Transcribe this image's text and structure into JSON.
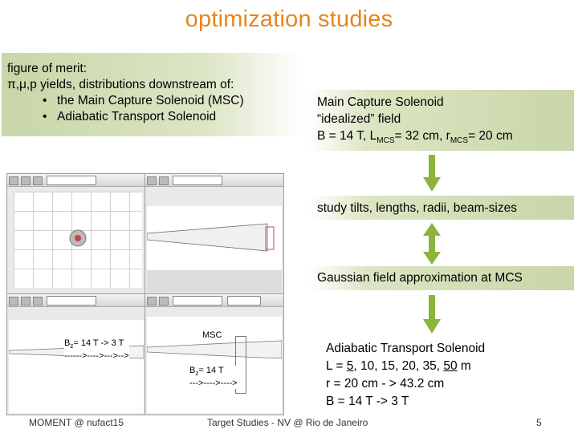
{
  "slide": {
    "title": "optimization studies",
    "merit": {
      "heading": "figure of merit:",
      "line": "π,μ,p yields, distributions downstream of:",
      "items": [
        "the Main Capture Solenoid (MSC)",
        "Adiabatic Transport Solenoid"
      ]
    },
    "msc_box": {
      "line1": "Main Capture Solenoid",
      "line2": "“idealized” field",
      "line3_pre": "B = 14  T, L",
      "line3_sub1": "MCS",
      "line3_mid": "= 32 cm, r",
      "line3_sub2": "MCS",
      "line3_post": "= 20 cm"
    },
    "tilts_box": "study tilts, lengths, radii, beam-sizes",
    "gauss_box": "Gaussian field approximation at MCS",
    "ats": {
      "line1": "Adiabatic Transport Solenoid",
      "line2_pre": "L = ",
      "line2_u1": "5",
      "line2_mid": ", 10, 15, 20, 35, ",
      "line2_u2": "50",
      "line2_post": " m",
      "line3": "r = 20 cm - > 43.2 cm",
      "line4": "B = 14 T -> 3 T"
    },
    "sim": {
      "bz1_pre": "B",
      "bz1_sub": "z",
      "bz1_post": "= 14 T -> 3 T",
      "bz1_arrow": "------>---->--->-->",
      "msc": "MSC",
      "bz2_pre": "B",
      "bz2_sub": "z",
      "bz2_post": "= 14 T",
      "bz2_arrow": "--->---->---->"
    },
    "footer": {
      "left": "MOMENT @ nufact15",
      "center": "Target Studies - NV @ Rio de Janeiro",
      "page": "5"
    },
    "colors": {
      "title": "#e8841c",
      "arrow": "#8ab43c",
      "box": "#c8d6a8"
    }
  }
}
